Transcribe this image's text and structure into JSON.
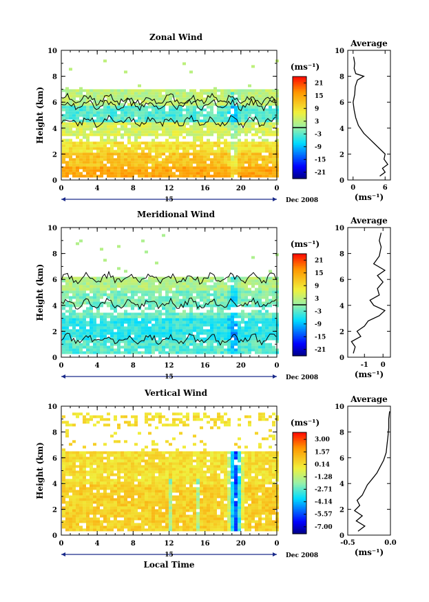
{
  "chart_data": [
    {
      "type": "heatmap",
      "title": "Zonal Wind",
      "ylabel": "Height (km)",
      "xlabel": "",
      "ylim": [
        0,
        10
      ],
      "xlim": [
        0,
        24
      ],
      "x_ticks": [
        "0",
        "4",
        "8",
        "12",
        "16",
        "20",
        "0"
      ],
      "y_ticks": [
        "0",
        "2",
        "4",
        "6",
        "8",
        "10"
      ],
      "date_day": "15",
      "date_label": "Dec 2008",
      "colorbar": {
        "unit": "(ms⁻¹)",
        "range": [
          -24,
          24
        ],
        "labels": [
          "21",
          "15",
          "9",
          "3",
          "-3",
          "-9",
          "-15",
          "-21"
        ],
        "values": [
          21,
          15,
          9,
          3,
          -3,
          -9,
          -15,
          -21
        ],
        "zero_line": 0
      },
      "field": {
        "data_top_km": 7.0,
        "layers": [
          {
            "from_km": 0.3,
            "to_km": 1.2,
            "value": 15
          },
          {
            "from_km": 1.2,
            "to_km": 2.2,
            "value": 12
          },
          {
            "from_km": 2.2,
            "to_km": 3.0,
            "value": 9
          },
          {
            "from_km": 3.0,
            "to_km": 4.5,
            "value": 5
          },
          {
            "from_km": 4.5,
            "to_km": 5.8,
            "value": -3
          },
          {
            "from_km": 5.8,
            "to_km": 7.0,
            "value": 3
          }
        ],
        "gap_band_km": [
          3.0,
          3.4
        ]
      },
      "profile": {
        "title": "Average",
        "xlabel": "(ms⁻¹)",
        "xlim": [
          -1,
          7
        ],
        "x_ticks": [
          "0",
          "6"
        ],
        "x_tick_values": [
          0,
          6
        ],
        "y_ticks": [
          "0",
          "2",
          "4",
          "6",
          "8",
          "10"
        ],
        "points": [
          [
            5.0,
            0.3
          ],
          [
            6.0,
            0.6
          ],
          [
            5.5,
            0.9
          ],
          [
            6.5,
            1.2
          ],
          [
            5.8,
            1.6
          ],
          [
            6.0,
            2.0
          ],
          [
            5.0,
            2.4
          ],
          [
            4.0,
            2.8
          ],
          [
            3.0,
            3.2
          ],
          [
            2.0,
            3.6
          ],
          [
            1.0,
            4.2
          ],
          [
            0.5,
            4.8
          ],
          [
            0.2,
            5.4
          ],
          [
            0.0,
            6.0
          ],
          [
            0.3,
            6.6
          ],
          [
            0.4,
            7.2
          ],
          [
            0.8,
            7.7
          ],
          [
            2.0,
            8.0
          ],
          [
            0.5,
            8.2
          ],
          [
            0.2,
            8.6
          ],
          [
            0.3,
            9.0
          ],
          [
            0.1,
            9.5
          ]
        ]
      }
    },
    {
      "type": "heatmap",
      "title": "Meridional Wind",
      "ylabel": "Height (km)",
      "xlabel": "",
      "ylim": [
        0,
        10
      ],
      "xlim": [
        0,
        24
      ],
      "x_ticks": [
        "0",
        "4",
        "8",
        "12",
        "16",
        "20",
        "0"
      ],
      "y_ticks": [
        "0",
        "2",
        "4",
        "6",
        "8",
        "10"
      ],
      "date_day": "15",
      "date_label": "Dec 2008",
      "colorbar": {
        "unit": "(ms⁻¹)",
        "range": [
          -24,
          24
        ],
        "labels": [
          "21",
          "15",
          "9",
          "3",
          "-3",
          "-9",
          "-15",
          "-21"
        ],
        "values": [
          21,
          15,
          9,
          3,
          -3,
          -9,
          -15,
          -21
        ],
        "zero_line": 0
      },
      "field": {
        "data_top_km": 6.2,
        "layers": [
          {
            "from_km": 0.3,
            "to_km": 1.5,
            "value": -3
          },
          {
            "from_km": 1.5,
            "to_km": 3.2,
            "value": -5
          },
          {
            "from_km": 3.2,
            "to_km": 4.2,
            "value": -2
          },
          {
            "from_km": 4.2,
            "to_km": 5.2,
            "value": -1
          },
          {
            "from_km": 5.2,
            "to_km": 6.2,
            "value": 2
          }
        ],
        "gap_band_km": [
          3.6,
          3.9
        ]
      },
      "profile": {
        "title": "Average",
        "xlabel": "(ms⁻¹)",
        "xlim": [
          -1.9,
          0.4
        ],
        "x_ticks": [
          "-1",
          "0"
        ],
        "x_tick_values": [
          -1,
          0
        ],
        "y_ticks": [
          "0",
          "2",
          "4",
          "6",
          "8",
          "10"
        ],
        "points": [
          [
            -1.6,
            0.3
          ],
          [
            -1.5,
            0.8
          ],
          [
            -1.7,
            1.2
          ],
          [
            -1.2,
            1.6
          ],
          [
            -1.4,
            2.0
          ],
          [
            -1.0,
            2.4
          ],
          [
            -0.8,
            2.8
          ],
          [
            -0.2,
            3.2
          ],
          [
            0.1,
            3.6
          ],
          [
            -0.5,
            4.0
          ],
          [
            -0.7,
            4.4
          ],
          [
            -0.2,
            4.8
          ],
          [
            -0.3,
            5.3
          ],
          [
            0.0,
            5.8
          ],
          [
            -0.3,
            6.3
          ],
          [
            0.1,
            6.7
          ],
          [
            -0.5,
            7.2
          ],
          [
            -0.2,
            7.8
          ],
          [
            -0.1,
            8.5
          ],
          [
            -0.2,
            9.0
          ],
          [
            -0.1,
            9.6
          ]
        ]
      }
    },
    {
      "type": "heatmap",
      "title": "Vertical Wind",
      "ylabel": "Height (km)",
      "xlabel": "Local Time",
      "ylim": [
        0,
        10
      ],
      "xlim": [
        0,
        24
      ],
      "x_ticks": [
        "0",
        "4",
        "8",
        "12",
        "16",
        "20",
        "0"
      ],
      "y_ticks": [
        "0",
        "2",
        "4",
        "6",
        "8",
        "10"
      ],
      "date_day": "15",
      "date_label": "Dec 2008",
      "colorbar": {
        "unit": "(ms⁻¹)",
        "range": [
          -7.8,
          3.8
        ],
        "labels": [
          "3.00",
          "1.57",
          "0.14",
          "-1.28",
          "-2.71",
          "-4.14",
          "-5.57",
          "-7.00"
        ],
        "values": [
          3.0,
          1.57,
          0.14,
          -1.28,
          -2.71,
          -4.14,
          -5.57,
          -7.0
        ],
        "zero_line": null
      },
      "field": {
        "data_top_km": 6.5,
        "layers": [
          {
            "from_km": 0.3,
            "to_km": 4.0,
            "value": 0.6
          },
          {
            "from_km": 4.0,
            "to_km": 6.5,
            "value": 0.2
          }
        ],
        "gap_band_km": null
      },
      "profile": {
        "title": "Average",
        "xlabel": "(ms⁻¹)",
        "xlim": [
          -0.5,
          0.0
        ],
        "x_ticks": [
          "-0.5",
          "0.0"
        ],
        "x_tick_values": [
          -0.5,
          0.0
        ],
        "y_ticks": [
          "0",
          "2",
          "4",
          "6",
          "8",
          "10"
        ],
        "points": [
          [
            -0.38,
            0.3
          ],
          [
            -0.3,
            0.7
          ],
          [
            -0.4,
            1.1
          ],
          [
            -0.33,
            1.5
          ],
          [
            -0.42,
            1.9
          ],
          [
            -0.36,
            2.3
          ],
          [
            -0.39,
            2.7
          ],
          [
            -0.33,
            3.1
          ],
          [
            -0.3,
            3.5
          ],
          [
            -0.27,
            3.9
          ],
          [
            -0.22,
            4.3
          ],
          [
            -0.16,
            4.8
          ],
          [
            -0.12,
            5.3
          ],
          [
            -0.08,
            5.8
          ],
          [
            -0.05,
            6.4
          ],
          [
            -0.04,
            7.0
          ],
          [
            -0.03,
            7.6
          ],
          [
            -0.02,
            8.3
          ],
          [
            -0.02,
            9.0
          ],
          [
            -0.01,
            9.6
          ]
        ]
      }
    }
  ]
}
